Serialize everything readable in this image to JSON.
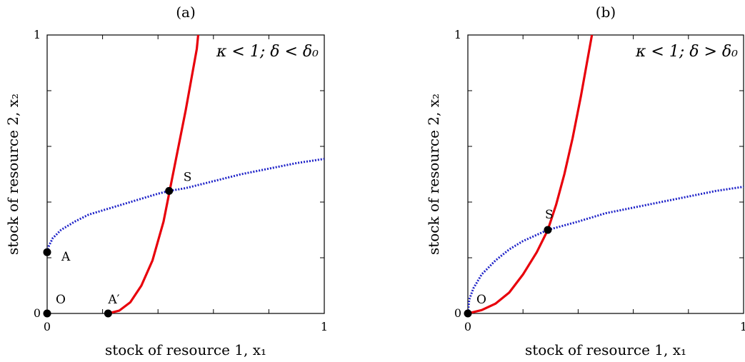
{
  "chart_data": [
    {
      "type": "line",
      "panel_label": "(a)",
      "annotation": "κ < 1; δ < δ₀",
      "xlabel": "stock of resource 1, x₁",
      "ylabel": "stock of resource 2, x₂",
      "xlim": [
        0,
        1
      ],
      "ylim": [
        0,
        1
      ],
      "x_tick_labels": [
        "0",
        "1"
      ],
      "y_tick_labels": [
        "0",
        "1"
      ],
      "grid": false,
      "series": [
        {
          "color": "#e8000b",
          "style": "solid",
          "x": [
            0.22,
            0.26,
            0.3,
            0.34,
            0.38,
            0.42,
            0.44,
            0.46,
            0.48,
            0.5,
            0.52,
            0.54,
            0.545
          ],
          "y": [
            0.0,
            0.01,
            0.04,
            0.1,
            0.19,
            0.33,
            0.43,
            0.53,
            0.63,
            0.73,
            0.84,
            0.95,
            1.0
          ]
        },
        {
          "color": "#1f23c8",
          "style": "dotted",
          "x": [
            0.0,
            0.005,
            0.02,
            0.05,
            0.1,
            0.15,
            0.2,
            0.3,
            0.4,
            0.44,
            0.5,
            0.6,
            0.7,
            0.8,
            0.9,
            1.0
          ],
          "y": [
            0.22,
            0.24,
            0.27,
            0.3,
            0.33,
            0.355,
            0.37,
            0.4,
            0.43,
            0.44,
            0.45,
            0.475,
            0.5,
            0.52,
            0.54,
            0.555
          ]
        }
      ],
      "points": [
        {
          "label": "O",
          "x": 0.0,
          "y": 0.0
        },
        {
          "label": "A",
          "x": 0.0,
          "y": 0.22
        },
        {
          "label": "A′",
          "x": 0.22,
          "y": 0.0
        },
        {
          "label": "S",
          "x": 0.44,
          "y": 0.44
        }
      ]
    },
    {
      "type": "line",
      "panel_label": "(b)",
      "annotation": "κ < 1; δ > δ₀",
      "xlabel": "stock of resource 1, x₁",
      "ylabel": "stock of resource 2, x₂",
      "xlim": [
        0,
        1
      ],
      "ylim": [
        0,
        1
      ],
      "x_tick_labels": [
        "0",
        "1"
      ],
      "y_tick_labels": [
        "0",
        "1"
      ],
      "grid": false,
      "series": [
        {
          "color": "#e8000b",
          "style": "solid",
          "x": [
            0.0,
            0.05,
            0.1,
            0.15,
            0.2,
            0.25,
            0.29,
            0.32,
            0.35,
            0.38,
            0.41,
            0.45
          ],
          "y": [
            0.0,
            0.012,
            0.035,
            0.075,
            0.14,
            0.22,
            0.3,
            0.39,
            0.5,
            0.63,
            0.78,
            1.0
          ]
        },
        {
          "color": "#1f23c8",
          "style": "dotted",
          "x": [
            0.0,
            0.005,
            0.02,
            0.05,
            0.1,
            0.15,
            0.2,
            0.29,
            0.4,
            0.5,
            0.6,
            0.7,
            0.8,
            0.9,
            1.0
          ],
          "y": [
            0.0,
            0.05,
            0.09,
            0.14,
            0.19,
            0.23,
            0.26,
            0.3,
            0.33,
            0.36,
            0.38,
            0.4,
            0.42,
            0.44,
            0.455
          ]
        }
      ],
      "points": [
        {
          "label": "O",
          "x": 0.0,
          "y": 0.0
        },
        {
          "label": "S",
          "x": 0.29,
          "y": 0.3
        }
      ]
    }
  ]
}
